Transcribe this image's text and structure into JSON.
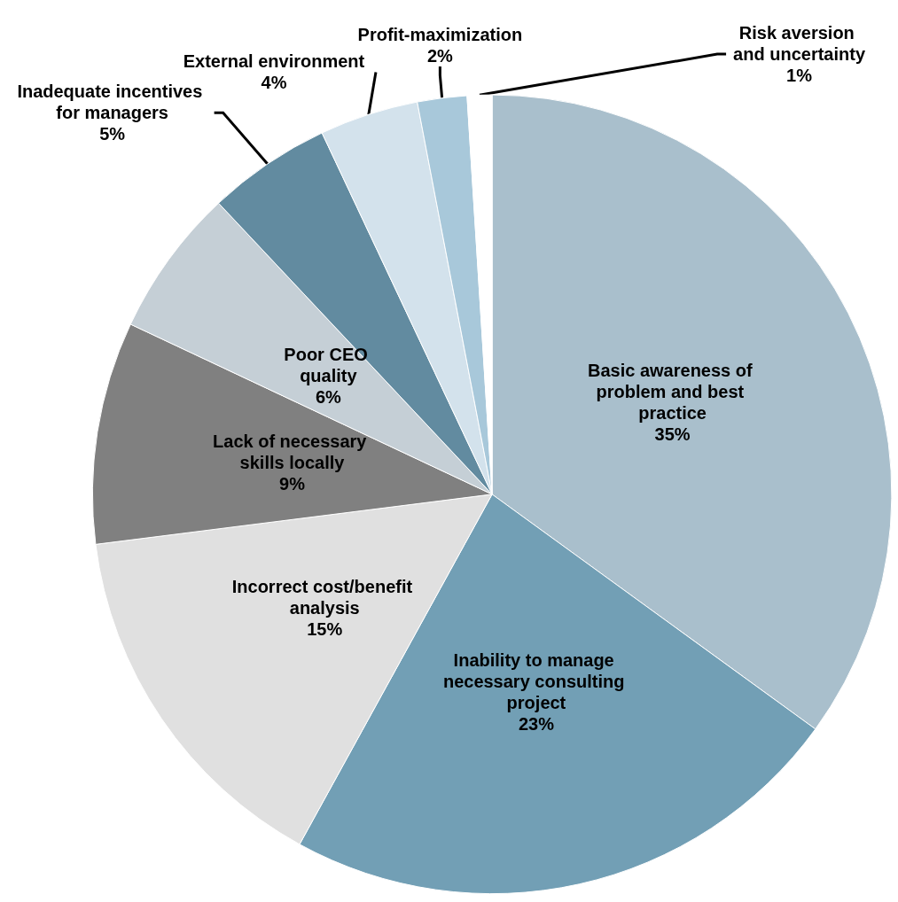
{
  "chart_data": {
    "type": "pie",
    "categories": [
      "Basic awareness of problem and best practice",
      "Inability to manage necessary consulting project",
      "Incorrect cost/benefit analysis",
      "Lack of necessary skills locally",
      "Poor CEO quality",
      "Inadequate incentives for managers",
      "External environment",
      "Profit-maximization",
      "Risk aversion and uncertainty"
    ],
    "values": [
      35,
      23,
      15,
      9,
      6,
      5,
      4,
      2,
      1
    ],
    "value_labels": [
      "35%",
      "23%",
      "15%",
      "9%",
      "6%",
      "5%",
      "4%",
      "2%",
      "1%"
    ],
    "colors": [
      "#a9bfcc",
      "#729fb5",
      "#e0e0e0",
      "#808080",
      "#c5cfd6",
      "#628ba0",
      "#d3e2ec",
      "#a8c8da",
      "#ffffff"
    ]
  }
}
